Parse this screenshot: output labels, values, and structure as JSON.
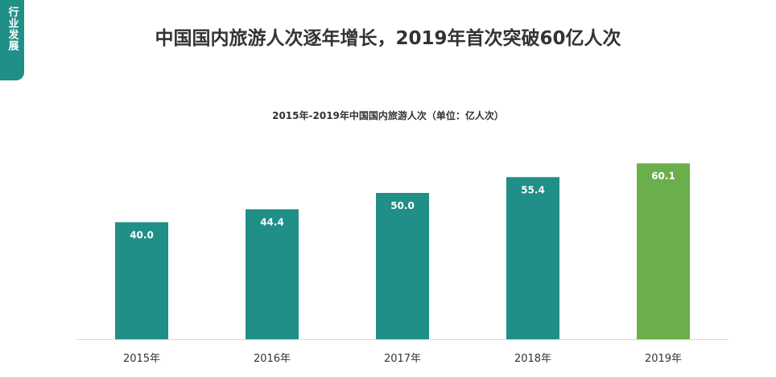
{
  "side_tab": {
    "label": "行业发展"
  },
  "page": {
    "title": "中国国内旅游人次逐年增长，2019年首次突破60亿人次"
  },
  "chart_data": {
    "type": "bar",
    "title": "2015年-2019年中国国内旅游人次（单位：亿人次）",
    "xlabel": "",
    "ylabel": "",
    "categories": [
      "2015年",
      "2016年",
      "2017年",
      "2018年",
      "2019年"
    ],
    "values": [
      40.0,
      44.4,
      50.0,
      55.4,
      60.1
    ],
    "value_labels": [
      "40.0",
      "44.4",
      "50.0",
      "55.4",
      "60.1"
    ],
    "ylim": [
      0,
      70
    ],
    "grid": false,
    "colors": {
      "default": "#1f8f87",
      "highlight": "#6aaf4c",
      "label": "#ffffff",
      "axis": "#d9d9d9",
      "tick_text": "#333333"
    },
    "highlight_category": "2019年"
  }
}
